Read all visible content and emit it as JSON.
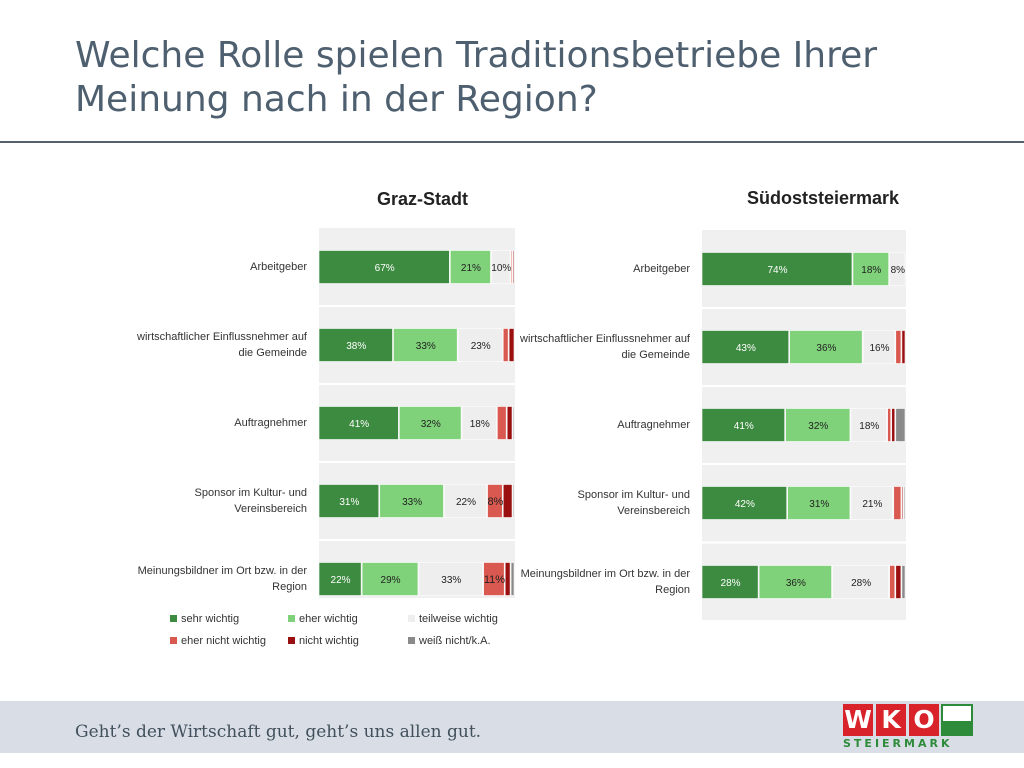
{
  "title_line1": "Welche Rolle spielen Traditionsbetriebe Ihrer",
  "title_line2": "Meinung nach in der Region?",
  "footer": {
    "tagline": "Geht’s der Wirtschaft gut, geht’s uns allen gut.",
    "logo_letters": [
      "W",
      "K",
      "O"
    ],
    "logo_sub": "STEIERMARK"
  },
  "colors": {
    "sehr_wichtig": "#3d8b40",
    "eher_wichtig": "#7fd27a",
    "teilweise_wichtig": "#eeeeee",
    "eher_nicht_wichtig": "#d9584f",
    "nicht_wichtig": "#9a1010",
    "weiss_nicht": "#8a8a8a"
  },
  "legend": [
    {
      "key": "sehr_wichtig",
      "label": "sehr wichtig"
    },
    {
      "key": "eher_wichtig",
      "label": "eher wichtig"
    },
    {
      "key": "teilweise_wichtig",
      "label": "teilweise wichtig"
    },
    {
      "key": "eher_nicht_wichtig",
      "label": "eher nicht wichtig"
    },
    {
      "key": "nicht_wichtig",
      "label": "nicht wichtig"
    },
    {
      "key": "weiss_nicht",
      "label": "weiß nicht/k.A."
    }
  ],
  "chart_data": [
    {
      "type": "bar",
      "orientation": "horizontal-stacked-100",
      "title": "Graz-Stadt",
      "categories": [
        "Arbeitgeber",
        "wirtschaftlicher Einflussnehmer auf die Gemeinde",
        "Auftragnehmer",
        "Sponsor im Kultur- und Vereinsbereich",
        "Meinungsbildner im Ort bzw. in der Region"
      ],
      "series": [
        {
          "name": "sehr wichtig",
          "key": "sehr_wichtig",
          "values": [
            67,
            38,
            41,
            31,
            22
          ]
        },
        {
          "name": "eher wichtig",
          "key": "eher_wichtig",
          "values": [
            21,
            33,
            32,
            33,
            29
          ]
        },
        {
          "name": "teilweise wichtig",
          "key": "teilweise_wichtig",
          "values": [
            10,
            23,
            18,
            22,
            33
          ]
        },
        {
          "name": "eher nicht wichtig",
          "key": "eher_nicht_wichtig",
          "values": [
            1,
            3,
            5,
            8,
            11
          ]
        },
        {
          "name": "nicht wichtig",
          "key": "nicht_wichtig",
          "values": [
            1,
            3,
            3,
            5,
            3
          ]
        },
        {
          "name": "weiß nicht/k.A.",
          "key": "weiss_nicht",
          "values": [
            0,
            0,
            1,
            1,
            2
          ]
        }
      ],
      "labels": [
        [
          "67%",
          "21%",
          "10%",
          "",
          "",
          ""
        ],
        [
          "38%",
          "33%",
          "23%",
          "",
          "",
          ""
        ],
        [
          "41%",
          "32%",
          "18%",
          "",
          "",
          ""
        ],
        [
          "31%",
          "33%",
          "22%",
          "8%",
          "",
          ""
        ],
        [
          "22%",
          "29%",
          "33%",
          "11%",
          "",
          ""
        ]
      ],
      "xlim": [
        0,
        100
      ]
    },
    {
      "type": "bar",
      "orientation": "horizontal-stacked-100",
      "title": "Südoststeiermark",
      "categories": [
        "Arbeitgeber",
        "wirtschaftlicher Einflussnehmer auf die Gemeinde",
        "Auftragnehmer",
        "Sponsor im Kultur- und Vereinsbereich",
        "Meinungsbildner im Ort bzw. in der Region"
      ],
      "series": [
        {
          "name": "sehr wichtig",
          "key": "sehr_wichtig",
          "values": [
            74,
            43,
            41,
            42,
            28
          ]
        },
        {
          "name": "eher wichtig",
          "key": "eher_wichtig",
          "values": [
            18,
            36,
            32,
            31,
            36
          ]
        },
        {
          "name": "teilweise wichtig",
          "key": "teilweise_wichtig",
          "values": [
            8,
            16,
            18,
            21,
            28
          ]
        },
        {
          "name": "eher nicht wichtig",
          "key": "eher_nicht_wichtig",
          "values": [
            0,
            3,
            2,
            4,
            3
          ]
        },
        {
          "name": "nicht wichtig",
          "key": "nicht_wichtig",
          "values": [
            0,
            2,
            2,
            1,
            3
          ]
        },
        {
          "name": "weiß nicht/k.A.",
          "key": "weiss_nicht",
          "values": [
            0,
            0,
            5,
            1,
            2
          ]
        }
      ],
      "labels": [
        [
          "74%",
          "18%",
          "8%",
          "",
          "",
          ""
        ],
        [
          "43%",
          "36%",
          "16%",
          "",
          "",
          ""
        ],
        [
          "41%",
          "32%",
          "18%",
          "",
          "",
          ""
        ],
        [
          "42%",
          "31%",
          "21%",
          "",
          "",
          ""
        ],
        [
          "28%",
          "36%",
          "28%",
          "",
          "",
          ""
        ]
      ],
      "xlim": [
        0,
        100
      ]
    }
  ]
}
